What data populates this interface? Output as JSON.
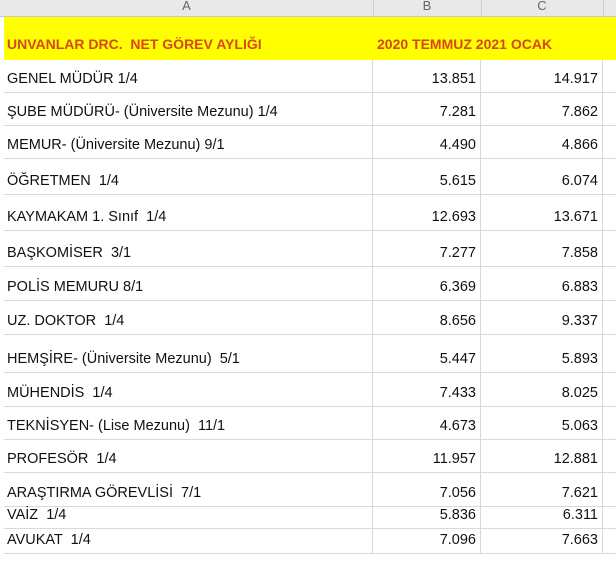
{
  "columns": [
    "A",
    "B",
    "C"
  ],
  "header": {
    "title": "UNVANLAR DRC.  NET GÖREV AYLIĞI",
    "period": "2020 TEMMUZ 2021 OCAK"
  },
  "header_color": "#ffff00",
  "rows": [
    {
      "title": "GENEL MÜDÜR 1/4",
      "b": "13.851",
      "c": "14.917"
    },
    {
      "title": "ŞUBE MÜDÜRÜ- (Üniversite Mezunu) 1/4",
      "b": "7.281",
      "c": "7.862"
    },
    {
      "title": "MEMUR- (Üniversite Mezunu) 9/1",
      "b": "4.490",
      "c": "4.866"
    },
    {
      "title": "ÖĞRETMEN  1/4",
      "b": "5.615",
      "c": "6.074"
    },
    {
      "title": "KAYMAKAM 1. Sınıf  1/4",
      "b": "12.693",
      "c": "13.671"
    },
    {
      "title": "BAŞKOMİSER  3/1",
      "b": "7.277",
      "c": "7.858"
    },
    {
      "title": "POLİS MEMURU 8/1",
      "b": "6.369",
      "c": "6.883"
    },
    {
      "title": "UZ. DOKTOR  1/4",
      "b": "8.656",
      "c": "9.337"
    },
    {
      "title": "HEMŞİRE- (Üniversite Mezunu)  5/1",
      "b": "5.447",
      "c": "5.893"
    },
    {
      "title": "MÜHENDİS  1/4",
      "b": "7.433",
      "c": "8.025"
    },
    {
      "title": "TEKNİSYEN- (Lise Mezunu)  11/1",
      "b": "4.673",
      "c": "5.063"
    },
    {
      "title": "PROFESÖR  1/4",
      "b": "11.957",
      "c": "12.881"
    },
    {
      "title": "ARAŞTIRMA GÖREVLİSİ  7/1",
      "b": "7.056",
      "c": "7.621"
    },
    {
      "title": "VAİZ  1/4",
      "b": "5.836",
      "c": "6.311"
    },
    {
      "title": "AVUKAT  1/4",
      "b": "7.096",
      "c": "7.663"
    }
  ]
}
